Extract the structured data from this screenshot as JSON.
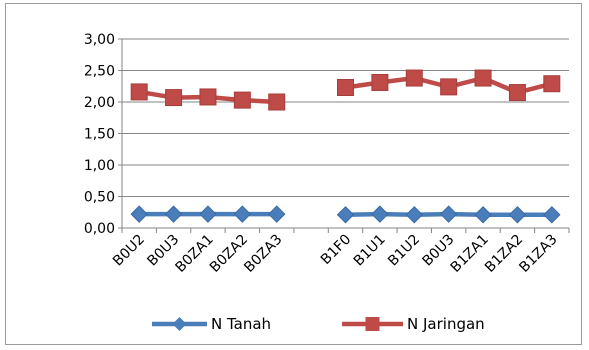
{
  "chart_data": {
    "type": "line",
    "title": "",
    "xlabel": "",
    "ylabel": "",
    "categories": [
      "B0U2",
      "B0U3",
      "B0ZA1",
      "B0ZA2",
      "B0ZA3",
      "",
      "B1F0",
      "B1U1",
      "B1U2",
      "B0U3",
      "B1ZA1",
      "B1ZA2",
      "B1ZA3"
    ],
    "ylim": [
      0,
      3
    ],
    "yticks": [
      0,
      0.5,
      1,
      1.5,
      2,
      2.5,
      3
    ],
    "ytick_labels": [
      "0,00",
      "0,50",
      "1,00",
      "1,50",
      "2,00",
      "2,50",
      "3,00"
    ],
    "grid": true,
    "legend_position": "bottom",
    "series": [
      {
        "name": "N Tanah",
        "color": "#4A7EBB",
        "marker": "diamond",
        "values": [
          0.22,
          0.22,
          0.22,
          0.22,
          0.22,
          null,
          0.21,
          0.22,
          0.21,
          0.22,
          0.21,
          0.21,
          0.21
        ]
      },
      {
        "name": "N Jaringan",
        "color": "#BE4B48",
        "marker": "square",
        "values": [
          2.16,
          2.07,
          2.08,
          2.03,
          2.0,
          null,
          2.23,
          2.31,
          2.38,
          2.24,
          2.38,
          2.15,
          2.29
        ]
      }
    ]
  }
}
